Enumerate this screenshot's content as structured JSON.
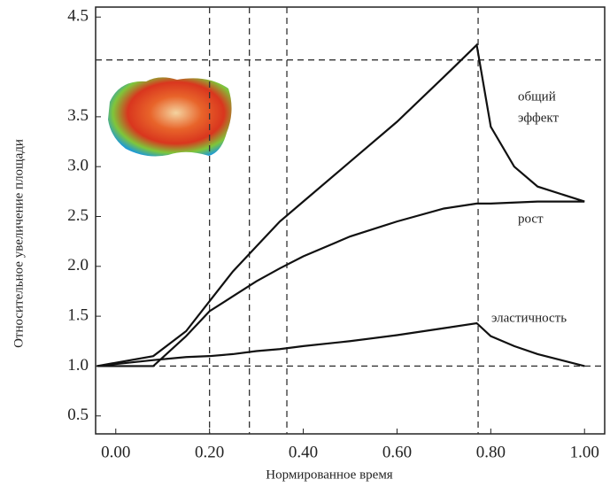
{
  "chart_data": {
    "type": "line",
    "x_label": "Нормированное время",
    "y_label": "Относительное увеличение площади",
    "x": [
      -0.04,
      0.08,
      0.15,
      0.2,
      0.25,
      0.3,
      0.35,
      0.4,
      0.5,
      0.6,
      0.7,
      0.77,
      0.8,
      0.85,
      0.9,
      1.0
    ],
    "series": [
      {
        "name": "общий эффект",
        "color": "#111111",
        "values": [
          1.0,
          1.1,
          1.35,
          1.65,
          1.95,
          2.2,
          2.45,
          2.65,
          3.05,
          3.45,
          3.9,
          4.22,
          3.4,
          3.0,
          2.8,
          2.65
        ]
      },
      {
        "name": "рост",
        "color": "#111111",
        "values": [
          1.0,
          1.0,
          1.3,
          1.55,
          1.7,
          1.85,
          1.98,
          2.1,
          2.3,
          2.45,
          2.58,
          2.63,
          2.63,
          2.64,
          2.65,
          2.65
        ]
      },
      {
        "name": "эластичность",
        "color": "#111111",
        "values": [
          1.0,
          1.06,
          1.09,
          1.1,
          1.12,
          1.15,
          1.17,
          1.2,
          1.25,
          1.31,
          1.38,
          1.43,
          1.3,
          1.2,
          1.12,
          1.0
        ]
      }
    ],
    "label_lines": [
      [
        "общий",
        "эффект"
      ],
      [
        "рост"
      ],
      [
        "эластичность"
      ]
    ],
    "xlim": [
      -0.043,
      1.043
    ],
    "ylim": [
      0.32,
      4.6
    ],
    "xticks": [
      {
        "value": 0,
        "label": "0.00"
      },
      {
        "value": 0.2,
        "label": "0.20"
      },
      {
        "value": 0.4,
        "label": "0.40"
      },
      {
        "value": 0.6,
        "label": "0.60"
      },
      {
        "value": 0.8,
        "label": "0.80"
      },
      {
        "value": 1,
        "label": "1.00"
      }
    ],
    "yticks": [
      0.5,
      {
        "value": 1,
        "label": "1.0"
      },
      1.5,
      {
        "value": 2,
        "label": "2.0"
      },
      2.5,
      {
        "value": 3,
        "label": "3.0"
      },
      3.5,
      4.5
    ],
    "vlines": [
      0.2,
      0.285,
      0.365,
      0.773
    ],
    "hlines": [
      1.0,
      4.07
    ]
  }
}
